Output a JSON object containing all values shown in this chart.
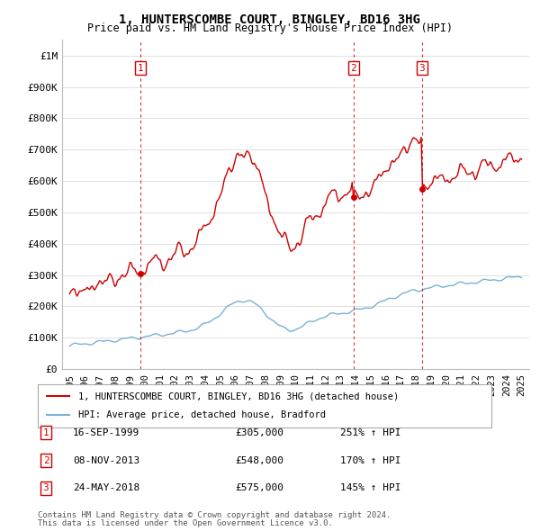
{
  "title": "1, HUNTERSCOMBE COURT, BINGLEY, BD16 3HG",
  "subtitle": "Price paid vs. HM Land Registry's House Price Index (HPI)",
  "sale_points": [
    {
      "num": 1,
      "date": "16-SEP-1999",
      "year": 1999.71,
      "price": 305000,
      "label": "251% ↑ HPI"
    },
    {
      "num": 2,
      "date": "08-NOV-2013",
      "year": 2013.85,
      "price": 548000,
      "label": "170% ↑ HPI"
    },
    {
      "num": 3,
      "date": "24-MAY-2018",
      "year": 2018.38,
      "price": 575000,
      "label": "145% ↑ HPI"
    }
  ],
  "legend_line1": "1, HUNTERSCOMBE COURT, BINGLEY, BD16 3HG (detached house)",
  "legend_line2": "HPI: Average price, detached house, Bradford",
  "footnote1": "Contains HM Land Registry data © Crown copyright and database right 2024.",
  "footnote2": "This data is licensed under the Open Government Licence v3.0.",
  "red_color": "#cc0000",
  "blue_color": "#7ab0d4",
  "background_color": "#ffffff",
  "grid_color": "#e0e0e0",
  "ylim": [
    0,
    1050000
  ],
  "xlim": [
    1994.5,
    2025.5
  ],
  "yticks": [
    0,
    100000,
    200000,
    300000,
    400000,
    500000,
    600000,
    700000,
    800000,
    900000,
    1000000
  ],
  "ytick_labels": [
    "£0",
    "£100K",
    "£200K",
    "£300K",
    "£400K",
    "£500K",
    "£600K",
    "£700K",
    "£800K",
    "£900K",
    "£1M"
  ],
  "xticks": [
    1995,
    1996,
    1997,
    1998,
    1999,
    2000,
    2001,
    2002,
    2003,
    2004,
    2005,
    2006,
    2007,
    2008,
    2009,
    2010,
    2011,
    2012,
    2013,
    2014,
    2015,
    2016,
    2017,
    2018,
    2019,
    2020,
    2021,
    2022,
    2023,
    2024,
    2025
  ]
}
